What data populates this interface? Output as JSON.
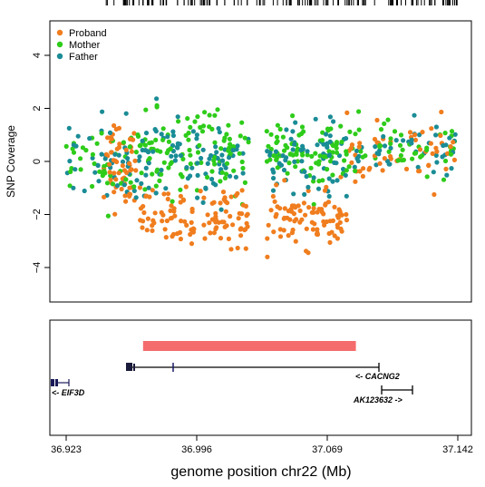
{
  "chart_data": {
    "type": "scatter",
    "ylabel": "SNP Coverage",
    "xlabel": "genome position chr22 (Mb)",
    "xlim": [
      36.923,
      37.142
    ],
    "ylim": [
      -5.3,
      5.3
    ],
    "x_ticks": [
      "36.923",
      "36.996",
      "37.069",
      "37.142"
    ],
    "x_tick_values": [
      36.923,
      36.996,
      37.069,
      37.142
    ],
    "y_ticks": [
      "−4",
      "−2",
      "0",
      "2",
      "4"
    ],
    "y_tick_values": [
      -4,
      -2,
      0,
      2,
      4
    ],
    "legend": {
      "placement": "top-left",
      "entries": [
        {
          "name": "Proband",
          "color": "#F07D1E"
        },
        {
          "name": "Mother",
          "color": "#2ECC1A"
        },
        {
          "name": "Father",
          "color": "#1A8C96"
        }
      ]
    },
    "series": [
      {
        "name": "Proband",
        "color": "#F07D1E",
        "bands": [
          {
            "x": [
              36.944,
              36.962
            ],
            "y_center": 0.0,
            "y_spread": 1.1,
            "n": 60
          },
          {
            "x": [
              36.964,
              37.025
            ],
            "y_center": -2.1,
            "y_spread": 0.7,
            "n": 110
          },
          {
            "x": [
              37.035,
              37.08
            ],
            "y_center": -2.1,
            "y_spread": 0.7,
            "n": 90
          },
          {
            "x": [
              37.08,
              37.142
            ],
            "y_center": 0.2,
            "y_spread": 0.8,
            "n": 55
          }
        ]
      },
      {
        "name": "Mother",
        "color": "#2ECC1A",
        "bands": [
          {
            "x": [
              36.923,
              36.962
            ],
            "y_center": -0.1,
            "y_spread": 0.9,
            "n": 40
          },
          {
            "x": [
              36.962,
              37.025
            ],
            "y_center": 0.3,
            "y_spread": 1.0,
            "n": 110
          },
          {
            "x": [
              37.035,
              37.08
            ],
            "y_center": 0.3,
            "y_spread": 0.9,
            "n": 85
          },
          {
            "x": [
              37.08,
              37.142
            ],
            "y_center": 0.5,
            "y_spread": 0.6,
            "n": 50
          }
        ]
      },
      {
        "name": "Father",
        "color": "#1A8C96",
        "bands": [
          {
            "x": [
              36.923,
              36.962
            ],
            "y_center": 0.0,
            "y_spread": 1.0,
            "n": 45
          },
          {
            "x": [
              36.962,
              37.025
            ],
            "y_center": 0.0,
            "y_spread": 1.0,
            "n": 90
          },
          {
            "x": [
              37.035,
              37.08
            ],
            "y_center": 0.1,
            "y_spread": 0.9,
            "n": 70
          },
          {
            "x": [
              37.08,
              37.142
            ],
            "y_center": 0.4,
            "y_spread": 0.7,
            "n": 45
          }
        ]
      }
    ],
    "highlight_region": {
      "x": [
        36.966,
        37.085
      ],
      "color": "#F46C6C"
    },
    "genes": [
      {
        "name": "EIF3D",
        "label": "<- EIF3D",
        "start": 36.923,
        "end": 36.926,
        "strand": "-"
      },
      {
        "name": "CACNG2",
        "label": "<- CACNG2",
        "start": 36.962,
        "end": 37.085,
        "strand": "-"
      },
      {
        "name": "AK123632",
        "label": "AK123632 ->",
        "start": 37.085,
        "end": 37.102,
        "strand": "+"
      }
    ],
    "rug_ticks": {
      "count": 150,
      "x": [
        36.945,
        37.142
      ]
    }
  }
}
